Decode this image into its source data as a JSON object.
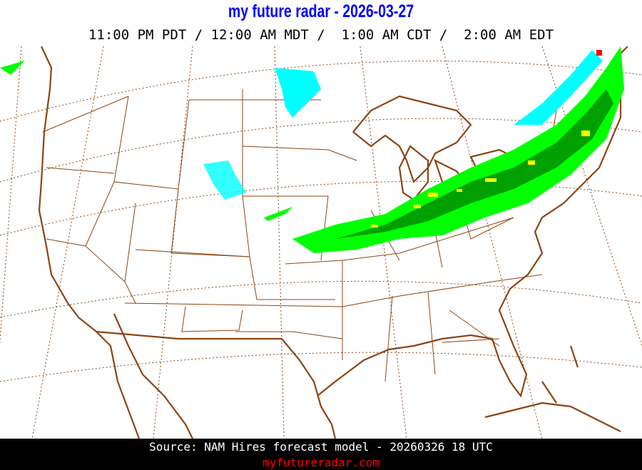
{
  "header": {
    "title": "my future radar - 2026-03-27",
    "times": "11:00 PM PDT / 12:00 AM MDT /  1:00 AM CDT /  2:00 AM EDT"
  },
  "map": {
    "region": "Continental United States",
    "border_color": "#8b4513",
    "precip_colors": {
      "light": "#00ff00",
      "moderate": "#00a000",
      "heavy": "#ffff00",
      "very_heavy": "#ff0000",
      "snow": "#00ffff"
    }
  },
  "footer": {
    "source": "Source: NAM Hires forecast model - 20260326 18 UTC",
    "site": "myfutureradar.com"
  }
}
